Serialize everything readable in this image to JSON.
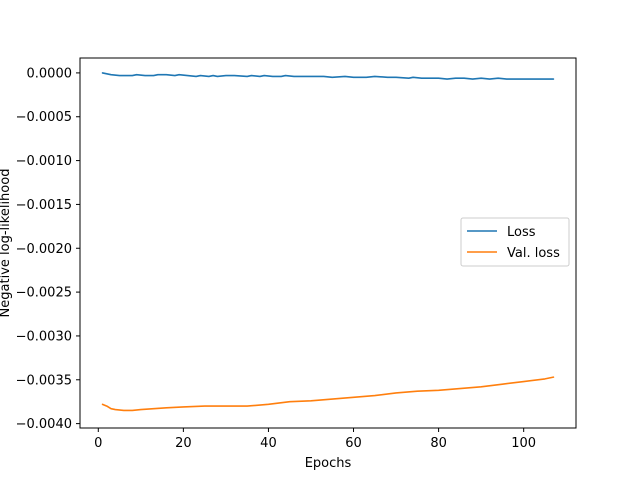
{
  "chart_data": {
    "type": "line",
    "title": "",
    "xlabel": "Epochs",
    "ylabel": "Negative log-likelihood",
    "xlim": [
      -4.3,
      112.3
    ],
    "ylim": [
      -0.00405,
      0.00017
    ],
    "x_ticks": [
      0,
      20,
      40,
      60,
      80,
      100
    ],
    "x_tick_labels": [
      "0",
      "20",
      "40",
      "60",
      "80",
      "100"
    ],
    "y_ticks": [
      0.0,
      -0.0005,
      -0.001,
      -0.0015,
      -0.002,
      -0.0025,
      -0.003,
      -0.0035,
      -0.004
    ],
    "y_tick_labels": [
      "0.0000",
      "−0.0005",
      "−0.0010",
      "−0.0015",
      "−0.0020",
      "−0.0025",
      "−0.0030",
      "−0.0035",
      "−0.0040"
    ],
    "grid": false,
    "legend_position": "center-right",
    "series": [
      {
        "name": "Loss",
        "color": "#1f77b4",
        "x": [
          1,
          3,
          5,
          8,
          9,
          11,
          13,
          14,
          16,
          18,
          19,
          21,
          23,
          24,
          26,
          27,
          28,
          30,
          32,
          35,
          36,
          38,
          39,
          41,
          43,
          44,
          46,
          49,
          51,
          53,
          55,
          58,
          60,
          63,
          65,
          68,
          70,
          73,
          74,
          76,
          78,
          80,
          82,
          84,
          86,
          88,
          90,
          92,
          94,
          96,
          98,
          100,
          102,
          104,
          107
        ],
        "y": [
          0.0,
          -2e-05,
          -3e-05,
          -3e-05,
          -2e-05,
          -3e-05,
          -3e-05,
          -2e-05,
          -2e-05,
          -3e-05,
          -2e-05,
          -3e-05,
          -4e-05,
          -3e-05,
          -4e-05,
          -3e-05,
          -4e-05,
          -3e-05,
          -3e-05,
          -4e-05,
          -3e-05,
          -4e-05,
          -3e-05,
          -4e-05,
          -4e-05,
          -3e-05,
          -4e-05,
          -4e-05,
          -4e-05,
          -4e-05,
          -5e-05,
          -4e-05,
          -5e-05,
          -5e-05,
          -4e-05,
          -5e-05,
          -5e-05,
          -6e-05,
          -5e-05,
          -6e-05,
          -6e-05,
          -6e-05,
          -7e-05,
          -6e-05,
          -6e-05,
          -7e-05,
          -6e-05,
          -7e-05,
          -6e-05,
          -7e-05,
          -7e-05,
          -7e-05,
          -7e-05,
          -7e-05,
          -7e-05
        ]
      },
      {
        "name": "Val. loss",
        "color": "#ff7f0e",
        "x": [
          1,
          2,
          3,
          4,
          6,
          8,
          10,
          13,
          16,
          20,
          25,
          30,
          35,
          40,
          45,
          50,
          55,
          60,
          65,
          70,
          75,
          80,
          85,
          90,
          95,
          100,
          105,
          107
        ],
        "y": [
          -0.00378,
          -0.0038,
          -0.00383,
          -0.00384,
          -0.00385,
          -0.00385,
          -0.00384,
          -0.00383,
          -0.00382,
          -0.00381,
          -0.0038,
          -0.0038,
          -0.0038,
          -0.00378,
          -0.00375,
          -0.00374,
          -0.00372,
          -0.0037,
          -0.00368,
          -0.00365,
          -0.00363,
          -0.00362,
          -0.0036,
          -0.00358,
          -0.00355,
          -0.00352,
          -0.00349,
          -0.00347
        ]
      }
    ]
  }
}
